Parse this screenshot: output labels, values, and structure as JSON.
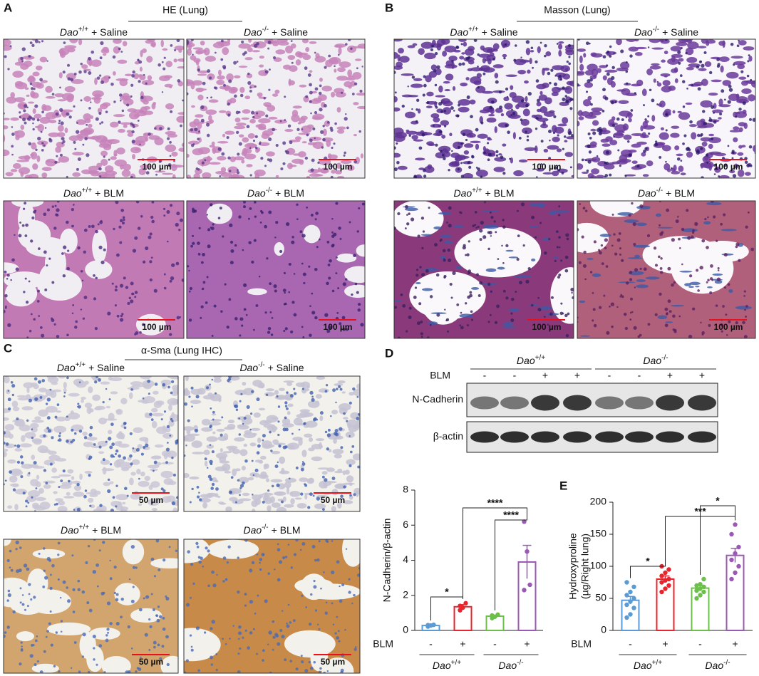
{
  "panels": [
    {
      "letter": "A",
      "title": "HE (Lung)",
      "scale_bar": "100 µm",
      "images": [
        {
          "gene": "Dao",
          "allele": "+/+",
          "treatment": "+ Saline"
        },
        {
          "gene": "Dao",
          "allele": "-/-",
          "treatment": "+ Saline"
        },
        {
          "gene": "Dao",
          "allele": "+/+",
          "treatment": "+ BLM"
        },
        {
          "gene": "Dao",
          "allele": "-/-",
          "treatment": "+ BLM"
        }
      ]
    },
    {
      "letter": "B",
      "title": "Masson (Lung)",
      "scale_bar": "100 µm",
      "images": [
        {
          "gene": "Dao",
          "allele": "+/+",
          "treatment": "+ Saline"
        },
        {
          "gene": "Dao",
          "allele": "-/-",
          "treatment": "+ Saline"
        },
        {
          "gene": "Dao",
          "allele": "+/+",
          "treatment": "+ BLM"
        },
        {
          "gene": "Dao",
          "allele": "-/-",
          "treatment": "+ BLM"
        }
      ]
    },
    {
      "letter": "C",
      "title": "α-Sma (Lung IHC)",
      "scale_bar": "50 µm",
      "images": [
        {
          "gene": "Dao",
          "allele": "+/+",
          "treatment": "+ Saline"
        },
        {
          "gene": "Dao",
          "allele": "-/-",
          "treatment": "+ Saline"
        },
        {
          "gene": "Dao",
          "allele": "+/+",
          "treatment": "+ BLM"
        },
        {
          "gene": "Dao",
          "allele": "-/-",
          "treatment": "+ BLM"
        }
      ]
    }
  ],
  "blot": {
    "letter": "D",
    "groups": [
      {
        "gene": "Dao",
        "allele": "+/+"
      },
      {
        "gene": "Dao",
        "allele": "-/-"
      }
    ],
    "lane_label": "BLM",
    "lanes": [
      "-",
      "-",
      "+",
      "+",
      "-",
      "-",
      "+",
      "+"
    ],
    "rows": [
      "N-Cadherin",
      "β-actin"
    ]
  },
  "chart_data": [
    {
      "type": "bar",
      "ylabel": [
        "N-Cadherin/β-actin"
      ],
      "ylim": [
        0,
        8
      ],
      "yticks": [
        0,
        2,
        4,
        6,
        8
      ],
      "category_label": "BLM",
      "categories": [
        "-",
        "+",
        "-",
        "+"
      ],
      "groups": [
        {
          "gene": "Dao",
          "allele": "+/+"
        },
        {
          "gene": "Dao",
          "allele": "-/-"
        }
      ],
      "colors": [
        "#5b9bd5",
        "#e8242c",
        "#6cc04a",
        "#9b59b6"
      ],
      "values": [
        0.28,
        1.35,
        0.81,
        3.9
      ],
      "errors": [
        0.03,
        0.12,
        0.05,
        0.95
      ],
      "points": [
        [
          0.22,
          0.28,
          0.32,
          0.3
        ],
        [
          1.15,
          1.3,
          1.55,
          1.4
        ],
        [
          0.7,
          0.78,
          0.9,
          0.85
        ],
        [
          6.2,
          4.5,
          2.6,
          2.3
        ]
      ],
      "annotations": [
        {
          "text": "*",
          "pair": [
            0,
            1
          ]
        },
        {
          "text": "****",
          "pair": [
            1,
            3
          ]
        },
        {
          "text": "****",
          "pair": [
            2,
            3
          ]
        }
      ]
    },
    {
      "type": "bar",
      "letter": "E",
      "ylabel": [
        "Hydroxyproline",
        "(µg/Right lung)"
      ],
      "ylim": [
        0,
        200
      ],
      "yticks": [
        0,
        50,
        100,
        150,
        200
      ],
      "category_label": "BLM",
      "categories": [
        "-",
        "+",
        "-",
        "+"
      ],
      "groups": [
        {
          "gene": "Dao",
          "allele": "+/+"
        },
        {
          "gene": "Dao",
          "allele": "-/-"
        }
      ],
      "colors": [
        "#5b9bd5",
        "#e8242c",
        "#6cc04a",
        "#9b59b6"
      ],
      "values": [
        47,
        80,
        66,
        117
      ],
      "errors": [
        6,
        5,
        4,
        11
      ],
      "points": [
        [
          20,
          25,
          35,
          40,
          45,
          50,
          55,
          60,
          68,
          75
        ],
        [
          60,
          65,
          70,
          75,
          78,
          80,
          85,
          90,
          95,
          100
        ],
        [
          50,
          55,
          60,
          62,
          65,
          68,
          70,
          72,
          80
        ],
        [
          80,
          90,
          100,
          110,
          120,
          130,
          150,
          165
        ]
      ],
      "annotations": [
        {
          "text": "*",
          "pair": [
            0,
            1
          ]
        },
        {
          "text": "***",
          "pair": [
            1,
            3
          ]
        },
        {
          "text": "*",
          "pair": [
            2,
            3
          ]
        }
      ]
    }
  ]
}
